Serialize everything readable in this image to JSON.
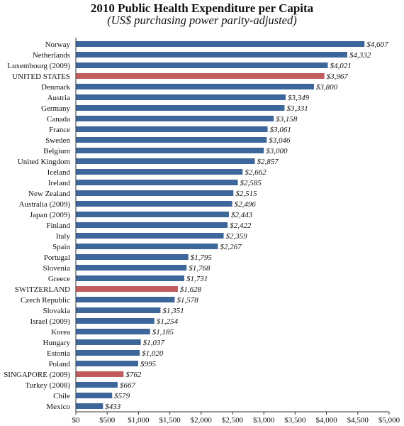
{
  "chart_data": {
    "type": "bar",
    "orientation": "horizontal",
    "title": "2010 Public Health Expenditure per Capita",
    "subtitle": "(US$ purchasing power parity-adjusted)",
    "categories": [
      "Norway",
      "Netherlands",
      "Luxembourg (2009)",
      "UNITED STATES",
      "Denmark",
      "Austria",
      "Germany",
      "Canada",
      "France",
      "Sweden",
      "Belgium",
      "United Kingdom",
      "Iceland",
      "Ireland",
      "New Zealand",
      "Australia (2009)",
      "Japan (2009)",
      "Finland",
      "Italy",
      "Spain",
      "Portugal",
      "Slovenia",
      "Greece",
      "SWITZERLAND",
      "Czech Republic",
      "Slovakia",
      "Israel (2009)",
      "Korea",
      "Hungary",
      "Estonia",
      "Poland",
      "SINGAPORE (2009)",
      "Turkey (2008)",
      "Chile",
      "Mexico"
    ],
    "values": [
      4607,
      4332,
      4021,
      3967,
      3800,
      3349,
      3331,
      3158,
      3061,
      3046,
      3000,
      2857,
      2662,
      2585,
      2515,
      2496,
      2443,
      2422,
      2359,
      2267,
      1795,
      1768,
      1731,
      1628,
      1578,
      1351,
      1254,
      1185,
      1037,
      1020,
      995,
      762,
      667,
      579,
      433
    ],
    "value_labels": [
      "$4,607",
      "$4,332",
      "$4,021",
      "$3,967",
      "$3,800",
      "$3,349",
      "$3,331",
      "$3,158",
      "$3,061",
      "$3,046",
      "$3,000",
      "$2,857",
      "$2,662",
      "$2,585",
      "$2,515",
      "$2,496",
      "$2,443",
      "$2,422",
      "$2,359",
      "$2,267",
      "$1,795",
      "$1,768",
      "$1,731",
      "$1,628",
      "$1,578",
      "$1,351",
      "$1,254",
      "$1,185",
      "$1,037",
      "$1,020",
      "$995",
      "$762",
      "$667",
      "$579",
      "$433"
    ],
    "highlighted": [
      "UNITED STATES",
      "SWITZERLAND",
      "SINGAPORE (2009)"
    ],
    "xlim": [
      0,
      5000
    ],
    "xticks": [
      0,
      500,
      1000,
      1500,
      2000,
      2500,
      3000,
      3500,
      4000,
      4500,
      5000
    ],
    "xtick_labels": [
      "$0",
      "$500",
      "$1,000",
      "$1,500",
      "$2,000",
      "$2,500",
      "$3,000",
      "$3,500",
      "$4,000",
      "$4,500",
      "$5,000"
    ],
    "grid": false,
    "colors": {
      "default_bar": "#3d679a",
      "highlight_bar": "#c25d5d"
    }
  }
}
